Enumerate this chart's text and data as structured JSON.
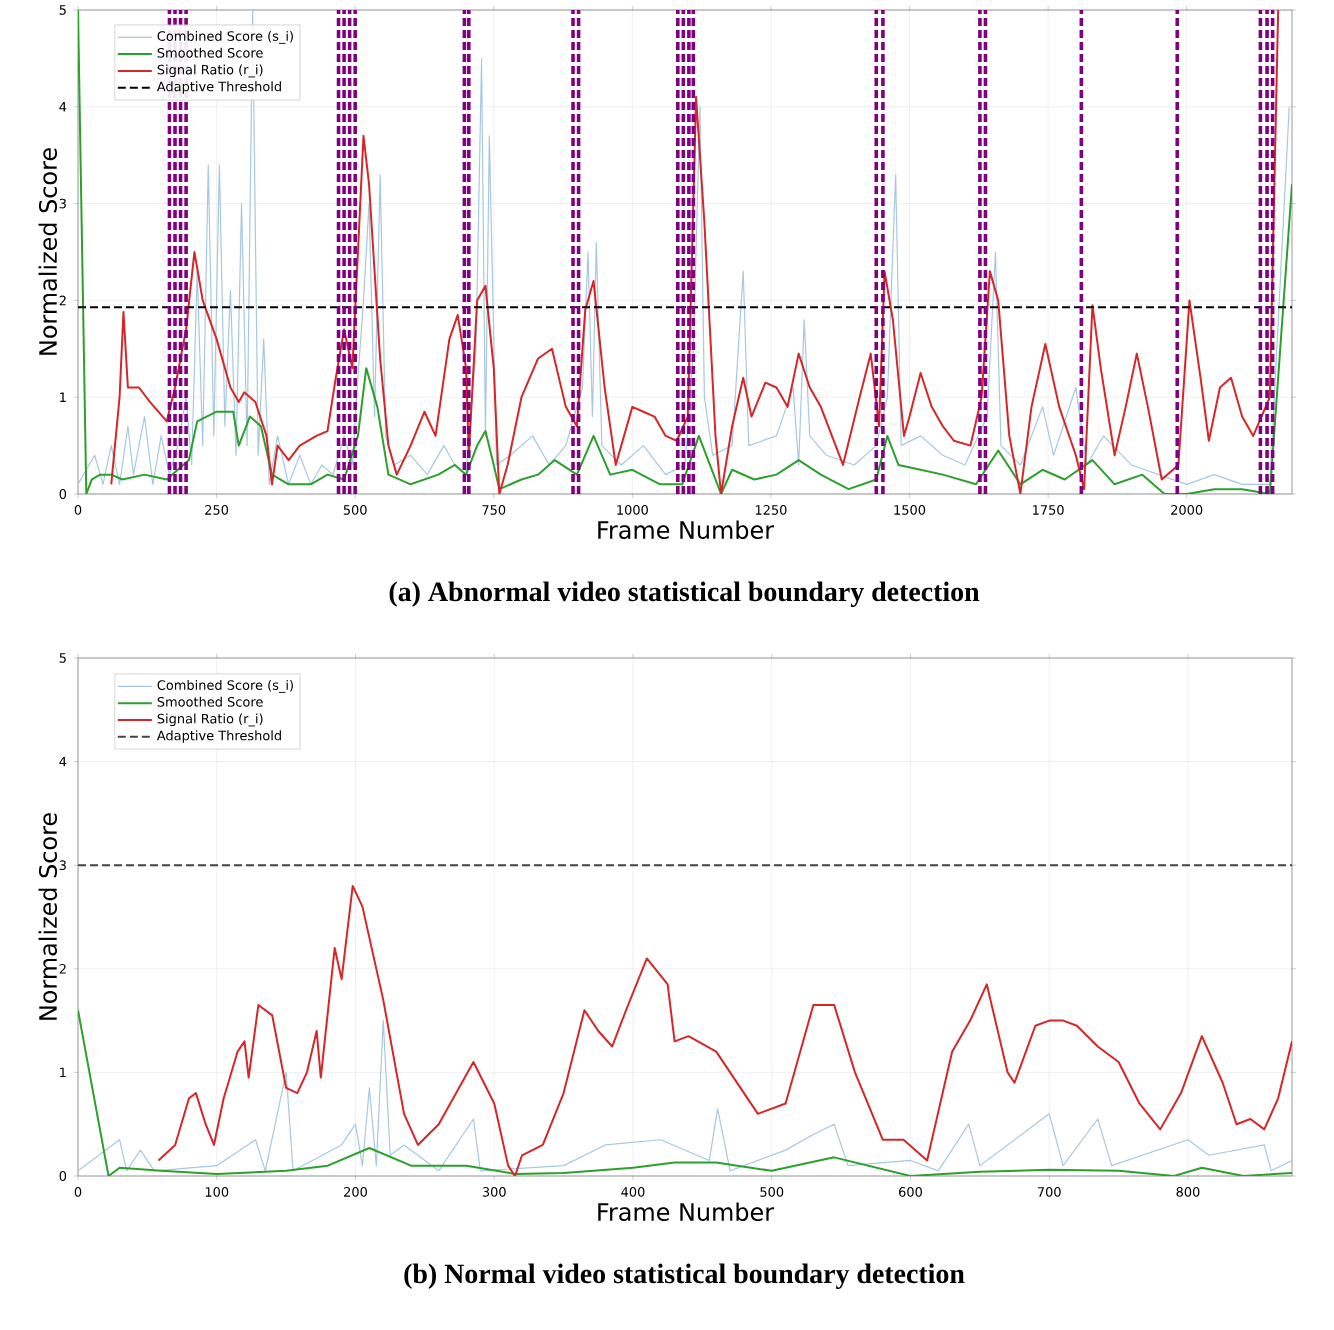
{
  "chart_data": [
    {
      "type": "line",
      "xlabel": "Frame Number",
      "ylabel": "Normalized Score",
      "xlim": [
        0,
        2190
      ],
      "ylim": [
        0,
        5
      ],
      "xticks": [
        0,
        250,
        500,
        750,
        1000,
        1250,
        1500,
        1750,
        2000
      ],
      "yticks": [
        0,
        1,
        2,
        3,
        4,
        5
      ],
      "grid": true,
      "legend": "top left",
      "series": [
        {
          "name": "Combined Score (s_i)",
          "color": "#a6c8e3",
          "x": [
            0,
            30,
            45,
            60,
            75,
            90,
            100,
            120,
            135,
            150,
            165,
            180,
            195,
            205,
            215,
            225,
            235,
            245,
            255,
            265,
            275,
            285,
            295,
            305,
            315,
            325,
            335,
            345,
            360,
            380,
            400,
            420,
            440,
            460,
            480,
            495,
            505,
            515,
            525,
            535,
            545,
            555,
            570,
            600,
            630,
            660,
            680,
            700,
            718,
            728,
            735,
            742,
            755,
            780,
            820,
            850,
            880,
            910,
            920,
            928,
            935,
            945,
            980,
            1020,
            1060,
            1095,
            1110,
            1122,
            1130,
            1145,
            1180,
            1200,
            1210,
            1260,
            1290,
            1300,
            1310,
            1320,
            1350,
            1400,
            1440,
            1460,
            1475,
            1485,
            1520,
            1560,
            1600,
            1640,
            1655,
            1665,
            1700,
            1740,
            1760,
            1800,
            1820,
            1850,
            1900,
            1950,
            2000,
            2050,
            2100,
            2150,
            2185
          ],
          "values": [
            0.1,
            0.4,
            0.1,
            0.5,
            0.1,
            0.7,
            0.2,
            0.8,
            0.1,
            0.6,
            0.2,
            0.5,
            1.0,
            0.3,
            2.3,
            0.5,
            3.4,
            0.6,
            3.4,
            0.7,
            2.1,
            0.4,
            3.0,
            0.5,
            5.0,
            0.4,
            1.6,
            0.1,
            0.6,
            0.1,
            0.4,
            0.1,
            0.3,
            0.2,
            0.6,
            0.3,
            1.2,
            2.0,
            3.0,
            0.8,
            3.3,
            0.6,
            0.3,
            0.4,
            0.2,
            0.5,
            0.3,
            0.2,
            1.5,
            4.5,
            0.6,
            3.7,
            0.3,
            0.4,
            0.6,
            0.3,
            0.5,
            1.1,
            2.5,
            0.8,
            2.6,
            0.5,
            0.3,
            0.5,
            0.2,
            0.3,
            1.5,
            4.0,
            1.0,
            0.4,
            0.5,
            2.3,
            0.5,
            0.6,
            1.1,
            0.3,
            1.8,
            0.6,
            0.4,
            0.3,
            0.5,
            1.0,
            3.3,
            0.5,
            0.6,
            0.4,
            0.3,
            0.8,
            2.5,
            0.5,
            0.3,
            0.9,
            0.4,
            1.1,
            0.3,
            0.6,
            0.3,
            0.2,
            0.1,
            0.2,
            0.1,
            0.1,
            4.0
          ]
        },
        {
          "name": "Smoothed Score",
          "color": "#2ca02c",
          "x": [
            0,
            15,
            25,
            40,
            60,
            80,
            120,
            160,
            200,
            215,
            250,
            280,
            290,
            310,
            330,
            350,
            380,
            420,
            450,
            480,
            505,
            520,
            540,
            560,
            600,
            650,
            680,
            700,
            720,
            735,
            750,
            760,
            800,
            830,
            860,
            900,
            930,
            960,
            1000,
            1050,
            1090,
            1120,
            1140,
            1160,
            1180,
            1220,
            1260,
            1300,
            1340,
            1390,
            1440,
            1460,
            1480,
            1520,
            1560,
            1620,
            1660,
            1700,
            1740,
            1780,
            1830,
            1870,
            1920,
            1960,
            2000,
            2050,
            2100,
            2150,
            2190
          ],
          "values": [
            5.0,
            0.0,
            0.15,
            0.2,
            0.2,
            0.15,
            0.2,
            0.15,
            0.35,
            0.75,
            0.85,
            0.85,
            0.5,
            0.8,
            0.7,
            0.2,
            0.1,
            0.1,
            0.2,
            0.15,
            0.6,
            1.3,
            0.9,
            0.2,
            0.1,
            0.2,
            0.3,
            0.2,
            0.5,
            0.65,
            0.3,
            0.05,
            0.15,
            0.2,
            0.35,
            0.2,
            0.6,
            0.2,
            0.25,
            0.1,
            0.1,
            0.6,
            0.3,
            0.0,
            0.25,
            0.15,
            0.2,
            0.35,
            0.2,
            0.05,
            0.15,
            0.6,
            0.3,
            0.25,
            0.2,
            0.1,
            0.45,
            0.1,
            0.25,
            0.15,
            0.35,
            0.1,
            0.2,
            0.0,
            0.0,
            0.05,
            0.05,
            0.0,
            3.2
          ]
        },
        {
          "name": "Signal Ratio (r_i)",
          "color": "#d62728",
          "x": [
            60,
            75,
            82,
            90,
            110,
            130,
            145,
            160,
            175,
            195,
            210,
            225,
            250,
            275,
            290,
            300,
            320,
            340,
            350,
            360,
            380,
            400,
            430,
            450,
            465,
            480,
            495,
            505,
            515,
            525,
            545,
            560,
            575,
            600,
            625,
            645,
            670,
            685,
            700,
            705,
            720,
            735,
            750,
            760,
            775,
            800,
            830,
            855,
            880,
            900,
            915,
            930,
            950,
            970,
            1000,
            1020,
            1040,
            1060,
            1080,
            1100,
            1115,
            1130,
            1150,
            1160,
            1180,
            1200,
            1215,
            1240,
            1260,
            1280,
            1300,
            1320,
            1340,
            1380,
            1410,
            1430,
            1445,
            1455,
            1470,
            1490,
            1500,
            1520,
            1540,
            1560,
            1580,
            1610,
            1630,
            1645,
            1660,
            1680,
            1700,
            1720,
            1745,
            1770,
            1800,
            1815,
            1830,
            1845,
            1870,
            1890,
            1910,
            1930,
            1955,
            1985,
            2005,
            2025,
            2040,
            2060,
            2080,
            2100,
            2120,
            2135,
            2150,
            2165
          ],
          "values": [
            0.1,
            1.0,
            1.88,
            1.1,
            1.1,
            0.95,
            0.85,
            0.75,
            1.1,
            1.7,
            2.5,
            2.0,
            1.6,
            1.1,
            0.95,
            1.05,
            0.95,
            0.6,
            0.1,
            0.5,
            0.35,
            0.5,
            0.6,
            0.65,
            1.2,
            1.7,
            1.3,
            2.5,
            3.7,
            3.2,
            1.4,
            0.5,
            0.2,
            0.5,
            0.85,
            0.6,
            1.6,
            1.85,
            1.3,
            0.4,
            2.0,
            2.15,
            1.3,
            0.0,
            0.3,
            1.0,
            1.4,
            1.5,
            0.9,
            0.7,
            1.9,
            2.2,
            1.1,
            0.3,
            0.9,
            0.85,
            0.8,
            0.6,
            0.55,
            0.8,
            4.1,
            2.8,
            0.6,
            0.0,
            0.7,
            1.2,
            0.8,
            1.15,
            1.1,
            0.9,
            1.45,
            1.1,
            0.9,
            0.3,
            1.0,
            1.45,
            0.7,
            2.3,
            1.8,
            0.6,
            0.8,
            1.25,
            0.9,
            0.7,
            0.55,
            0.5,
            1.0,
            2.3,
            2.0,
            0.6,
            0.0,
            0.9,
            1.55,
            0.9,
            0.4,
            0.05,
            1.95,
            1.3,
            0.4,
            0.9,
            1.45,
            0.9,
            0.15,
            0.3,
            2.0,
            1.2,
            0.55,
            1.1,
            1.2,
            0.8,
            0.6,
            0.8,
            1.0,
            5.0
          ]
        }
      ],
      "ref_lines": [
        {
          "axis": "y",
          "value": 1.93,
          "label": "Adaptive Threshold",
          "color": "#000000",
          "line_style": "dashed"
        },
        {
          "axis": "x",
          "value": 165,
          "color": "#800080",
          "line_style": "dashed"
        },
        {
          "axis": "x",
          "value": 175,
          "color": "#800080",
          "line_style": "dashed"
        },
        {
          "axis": "x",
          "value": 185,
          "color": "#800080",
          "line_style": "dashed"
        },
        {
          "axis": "x",
          "value": 195,
          "color": "#800080",
          "line_style": "dashed"
        },
        {
          "axis": "x",
          "value": 470,
          "color": "#800080",
          "line_style": "dashed"
        },
        {
          "axis": "x",
          "value": 480,
          "color": "#800080",
          "line_style": "dashed"
        },
        {
          "axis": "x",
          "value": 490,
          "color": "#800080",
          "line_style": "dashed"
        },
        {
          "axis": "x",
          "value": 500,
          "color": "#800080",
          "line_style": "dashed"
        },
        {
          "axis": "x",
          "value": 697,
          "color": "#800080",
          "line_style": "dashed"
        },
        {
          "axis": "x",
          "value": 705,
          "color": "#800080",
          "line_style": "dashed"
        },
        {
          "axis": "x",
          "value": 893,
          "color": "#800080",
          "line_style": "dashed"
        },
        {
          "axis": "x",
          "value": 903,
          "color": "#800080",
          "line_style": "dashed"
        },
        {
          "axis": "x",
          "value": 1082,
          "color": "#800080",
          "line_style": "dashed"
        },
        {
          "axis": "x",
          "value": 1092,
          "color": "#800080",
          "line_style": "dashed"
        },
        {
          "axis": "x",
          "value": 1102,
          "color": "#800080",
          "line_style": "dashed"
        },
        {
          "axis": "x",
          "value": 1110,
          "color": "#800080",
          "line_style": "dashed"
        },
        {
          "axis": "x",
          "value": 1440,
          "color": "#800080",
          "line_style": "dashed"
        },
        {
          "axis": "x",
          "value": 1452,
          "color": "#800080",
          "line_style": "dashed"
        },
        {
          "axis": "x",
          "value": 1627,
          "color": "#800080",
          "line_style": "dashed"
        },
        {
          "axis": "x",
          "value": 1637,
          "color": "#800080",
          "line_style": "dashed"
        },
        {
          "axis": "x",
          "value": 1810,
          "color": "#800080",
          "line_style": "dashed"
        },
        {
          "axis": "x",
          "value": 1983,
          "color": "#800080",
          "line_style": "dashed"
        },
        {
          "axis": "x",
          "value": 2133,
          "color": "#800080",
          "line_style": "dashed"
        },
        {
          "axis": "x",
          "value": 2145,
          "color": "#800080",
          "line_style": "dashed"
        },
        {
          "axis": "x",
          "value": 2155,
          "color": "#800080",
          "line_style": "dashed"
        }
      ],
      "annotations": [
        "**(a) Abnormal video statistical boundary detection**"
      ]
    },
    {
      "type": "line",
      "xlabel": "Frame Number",
      "ylabel": "Normalized Score",
      "xlim": [
        0,
        875
      ],
      "ylim": [
        0,
        5
      ],
      "xticks": [
        0,
        100,
        200,
        300,
        400,
        500,
        600,
        700,
        800
      ],
      "yticks": [
        0,
        1,
        2,
        3,
        4,
        5
      ],
      "grid": true,
      "legend": "top left",
      "series": [
        {
          "name": "Combined Score (s_i)",
          "color": "#a6c8e3",
          "x": [
            0,
            30,
            35,
            45,
            55,
            100,
            128,
            135,
            150,
            155,
            190,
            200,
            205,
            210,
            215,
            220,
            225,
            235,
            260,
            285,
            290,
            350,
            380,
            420,
            455,
            461,
            470,
            510,
            530,
            545,
            555,
            600,
            620,
            642,
            650,
            700,
            710,
            735,
            745,
            800,
            815,
            855,
            860,
            875
          ],
          "values": [
            0.05,
            0.35,
            0.05,
            0.25,
            0.05,
            0.1,
            0.35,
            0.05,
            1.0,
            0.05,
            0.3,
            0.5,
            0.1,
            0.85,
            0.1,
            1.5,
            0.2,
            0.3,
            0.05,
            0.55,
            0.05,
            0.1,
            0.3,
            0.35,
            0.15,
            0.65,
            0.05,
            0.25,
            0.4,
            0.5,
            0.1,
            0.15,
            0.05,
            0.5,
            0.1,
            0.6,
            0.1,
            0.55,
            0.1,
            0.35,
            0.2,
            0.3,
            0.05,
            0.15
          ]
        },
        {
          "name": "Smoothed Score",
          "color": "#2ca02c",
          "x": [
            0,
            22,
            30,
            60,
            100,
            150,
            180,
            210,
            240,
            280,
            315,
            350,
            400,
            430,
            460,
            500,
            545,
            600,
            650,
            700,
            750,
            790,
            810,
            840,
            875
          ],
          "values": [
            1.6,
            0.0,
            0.08,
            0.05,
            0.02,
            0.05,
            0.1,
            0.27,
            0.1,
            0.1,
            0.02,
            0.03,
            0.08,
            0.13,
            0.13,
            0.05,
            0.18,
            0.0,
            0.04,
            0.06,
            0.05,
            0.0,
            0.08,
            0.0,
            0.03
          ]
        },
        {
          "name": "Signal Ratio (r_i)",
          "color": "#d62728",
          "x": [
            58,
            70,
            80,
            85,
            92,
            98,
            105,
            115,
            120,
            123,
            130,
            140,
            150,
            158,
            165,
            172,
            175,
            185,
            190,
            198,
            205,
            220,
            235,
            245,
            260,
            285,
            300,
            310,
            315,
            320,
            335,
            350,
            365,
            375,
            385,
            395,
            410,
            425,
            430,
            440,
            460,
            490,
            510,
            530,
            545,
            560,
            580,
            595,
            612,
            630,
            643,
            655,
            670,
            675,
            690,
            700,
            710,
            720,
            735,
            750,
            765,
            780,
            795,
            810,
            825,
            835,
            845,
            855,
            865,
            875
          ],
          "values": [
            0.15,
            0.3,
            0.75,
            0.8,
            0.5,
            0.3,
            0.75,
            1.2,
            1.3,
            0.95,
            1.65,
            1.55,
            0.85,
            0.8,
            1.0,
            1.4,
            0.95,
            2.2,
            1.9,
            2.8,
            2.6,
            1.7,
            0.6,
            0.3,
            0.5,
            1.1,
            0.7,
            0.1,
            0.0,
            0.2,
            0.3,
            0.8,
            1.6,
            1.4,
            1.25,
            1.6,
            2.1,
            1.85,
            1.3,
            1.35,
            1.2,
            0.6,
            0.7,
            1.65,
            1.65,
            1.0,
            0.35,
            0.35,
            0.15,
            1.2,
            1.5,
            1.85,
            1.0,
            0.9,
            1.45,
            1.5,
            1.5,
            1.45,
            1.25,
            1.1,
            0.7,
            0.45,
            0.8,
            1.35,
            0.9,
            0.5,
            0.55,
            0.45,
            0.75,
            1.3
          ]
        }
      ],
      "ref_lines": [
        {
          "axis": "y",
          "value": 3.0,
          "label": "Adaptive Threshold",
          "color": "#444444",
          "line_style": "dashed"
        }
      ],
      "annotations": [
        "**(b) Normal video statistical boundary detection**"
      ]
    }
  ]
}
